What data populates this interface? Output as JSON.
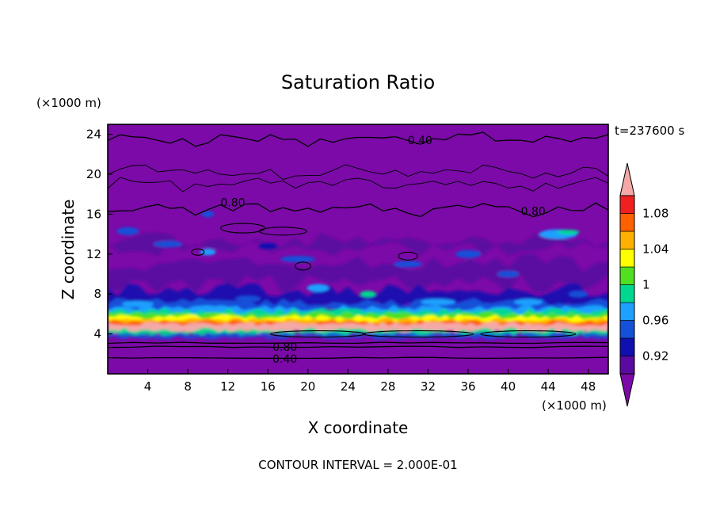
{
  "chart_data": {
    "type": "heatmap",
    "title": "Saturation Ratio",
    "xlabel": "X coordinate",
    "ylabel": "Z coordinate",
    "x_unit": "(×1000 m)",
    "y_unit": "(×1000 m)",
    "time_label": "t=237600 s",
    "footer": "CONTOUR INTERVAL = 2.000E-01",
    "xlim": [
      0,
      50
    ],
    "ylim": [
      0,
      25
    ],
    "x_ticks": [
      4,
      8,
      12,
      16,
      20,
      24,
      28,
      32,
      36,
      40,
      44,
      48
    ],
    "y_ticks": [
      4,
      8,
      12,
      16,
      20,
      24
    ],
    "colorbar": {
      "levels": [
        0.9,
        0.92,
        0.94,
        0.96,
        0.98,
        1.0,
        1.02,
        1.04,
        1.06,
        1.08,
        1.1
      ],
      "labels": [
        "0.92",
        "0.96",
        "1",
        "1.04",
        "1.08"
      ],
      "label_values": [
        0.92,
        0.96,
        1.0,
        1.04,
        1.08
      ],
      "colors": [
        "#5a0aa0",
        "#1010b0",
        "#1450d8",
        "#1ea0ff",
        "#00d890",
        "#50e020",
        "#ffff00",
        "#ffb000",
        "#ff6000",
        "#f02020"
      ],
      "under_color": "#7b0aa8",
      "over_color": "#f4a8a8"
    },
    "contour_labels": [
      {
        "text": "0.40",
        "x": 31.2,
        "z": 23.4
      },
      {
        "text": "0.80",
        "x": 12.5,
        "z": 17.2
      },
      {
        "text": "0.80",
        "x": 42.5,
        "z": 16.3
      },
      {
        "text": "0.80",
        "x": 17.7,
        "z": 2.7
      },
      {
        "text": "0.40",
        "x": 17.7,
        "z": 1.5
      }
    ],
    "cloud_layer_z": [
      4,
      6.3
    ],
    "background_value": 0.8
  }
}
